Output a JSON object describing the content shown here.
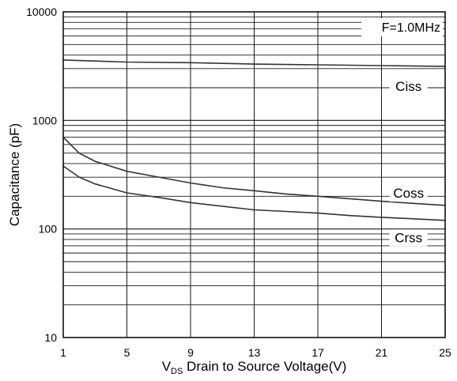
{
  "chart_data": {
    "type": "line",
    "title": "",
    "annotation": "F=1.0MHz",
    "xlabel": {
      "prefix": "V",
      "subscript": "DS",
      "suffix": " Drain to Source Voltage(V)"
    },
    "ylabel": "Capacitance (pF)",
    "xlim": [
      1,
      25
    ],
    "ylim": [
      10,
      10000
    ],
    "yscale": "log",
    "grid": true,
    "x_ticks": [
      1,
      5,
      9,
      13,
      17,
      21,
      25
    ],
    "x_tick_labels": [
      "1",
      "5",
      "9",
      "13",
      "17",
      "21",
      "25"
    ],
    "y_ticks": [
      10,
      100,
      1000,
      10000
    ],
    "y_tick_labels": [
      "10",
      "100",
      "1000",
      "10000"
    ],
    "series": [
      {
        "name": "Ciss",
        "x": [
          1,
          5,
          9,
          13,
          17,
          21,
          25
        ],
        "y": [
          3600,
          3450,
          3400,
          3300,
          3250,
          3200,
          3150
        ]
      },
      {
        "name": "Coss",
        "x": [
          1,
          2,
          3,
          5,
          7,
          9,
          11,
          13,
          15,
          17,
          19,
          21,
          23,
          25
        ],
        "y": [
          700,
          500,
          420,
          340,
          300,
          265,
          240,
          225,
          210,
          200,
          190,
          180,
          172,
          165
        ]
      },
      {
        "name": "Crss",
        "x": [
          1,
          2,
          3,
          5,
          7,
          9,
          11,
          13,
          15,
          17,
          19,
          21,
          23,
          25
        ],
        "y": [
          380,
          300,
          260,
          215,
          195,
          175,
          162,
          150,
          145,
          140,
          133,
          128,
          124,
          120
        ]
      }
    ],
    "colors": {
      "line": "#333333",
      "grid": "#1a1a1a",
      "frame": "#000000",
      "background": "#ffffff"
    }
  }
}
